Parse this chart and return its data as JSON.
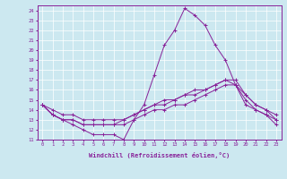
{
  "xlabel": "Windchill (Refroidissement éolien,°C)",
  "background_color": "#cce8f0",
  "line_color": "#882299",
  "xlim": [
    -0.5,
    23.5
  ],
  "ylim": [
    11,
    24.5
  ],
  "yticks": [
    11,
    12,
    13,
    14,
    15,
    16,
    17,
    18,
    19,
    20,
    21,
    22,
    23,
    24
  ],
  "xticks": [
    0,
    1,
    2,
    3,
    4,
    5,
    6,
    7,
    8,
    9,
    10,
    11,
    12,
    13,
    14,
    15,
    16,
    17,
    18,
    19,
    20,
    21,
    22,
    23
  ],
  "series": [
    [
      14.5,
      13.5,
      13.0,
      12.5,
      12.0,
      11.5,
      11.5,
      11.5,
      11.0,
      13.0,
      14.5,
      17.5,
      20.5,
      22.0,
      24.2,
      23.5,
      22.5,
      20.5,
      19.0,
      16.5,
      14.5,
      14.0,
      13.5,
      12.5
    ],
    [
      14.5,
      13.5,
      13.0,
      13.0,
      12.5,
      12.5,
      12.5,
      12.5,
      12.5,
      13.0,
      13.5,
      14.0,
      14.0,
      14.5,
      14.5,
      15.0,
      15.5,
      16.0,
      16.5,
      16.5,
      15.0,
      14.0,
      13.5,
      13.0
    ],
    [
      14.5,
      13.5,
      13.0,
      13.0,
      12.5,
      12.5,
      12.5,
      12.5,
      13.0,
      13.5,
      14.0,
      14.5,
      15.0,
      15.0,
      15.5,
      15.5,
      16.0,
      16.5,
      17.0,
      16.5,
      15.5,
      14.5,
      14.0,
      13.0
    ],
    [
      14.5,
      14.0,
      13.5,
      13.5,
      13.0,
      13.0,
      13.0,
      13.0,
      13.0,
      13.5,
      14.0,
      14.5,
      14.5,
      15.0,
      15.5,
      16.0,
      16.0,
      16.5,
      17.0,
      17.0,
      15.5,
      14.5,
      14.0,
      13.5
    ]
  ]
}
